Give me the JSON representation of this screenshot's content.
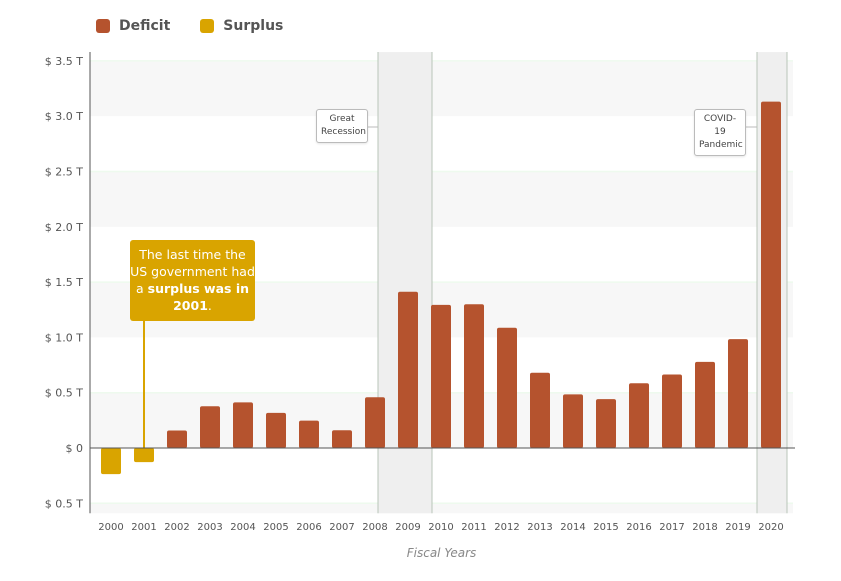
{
  "legend": {
    "deficit": "Deficit",
    "surplus": "Surplus"
  },
  "colors": {
    "deficit": "#b5532e",
    "surplus": "#d9a400",
    "band": "#f7f7f7",
    "event_shade": "#efefef"
  },
  "chart_data": {
    "type": "bar",
    "title": "",
    "xlabel": "Fiscal Years",
    "ylabel": "",
    "ylim": [
      -0.59,
      3.58
    ],
    "yticks": [
      -0.5,
      0,
      0.5,
      1.0,
      1.5,
      2.0,
      2.5,
      3.0,
      3.5
    ],
    "ytick_labels": [
      "$ 0.5 T",
      "$ 0",
      "$ 0.5 T",
      "$ 1.0 T",
      "$ 1.5 T",
      "$ 2.0 T",
      "$ 2.5 T",
      "$ 3.0 T",
      "$ 3.5 T"
    ],
    "categories": [
      "2000",
      "2001",
      "2002",
      "2003",
      "2004",
      "2005",
      "2006",
      "2007",
      "2008",
      "2009",
      "2010",
      "2011",
      "2012",
      "2013",
      "2014",
      "2015",
      "2016",
      "2017",
      "2018",
      "2019",
      "2020"
    ],
    "values": [
      -0.236,
      -0.128,
      0.158,
      0.378,
      0.413,
      0.318,
      0.248,
      0.161,
      0.459,
      1.413,
      1.294,
      1.3,
      1.087,
      0.68,
      0.485,
      0.442,
      0.585,
      0.665,
      0.779,
      0.984,
      3.132
    ],
    "unit": "trillions USD",
    "legend_position": "top-left",
    "grid": "alternating bands",
    "events": [
      {
        "label_line1": "Great",
        "label_line2": "Recession",
        "from": "2008",
        "to": "2010"
      },
      {
        "label_line1": "COVID-19",
        "label_line2": "Pandemic",
        "from": "2020",
        "to": "2020"
      }
    ],
    "annotation": {
      "part1": "The last time the US government had a ",
      "bold": "surplus was in 2001",
      "part2": ".",
      "target": "2001"
    }
  }
}
